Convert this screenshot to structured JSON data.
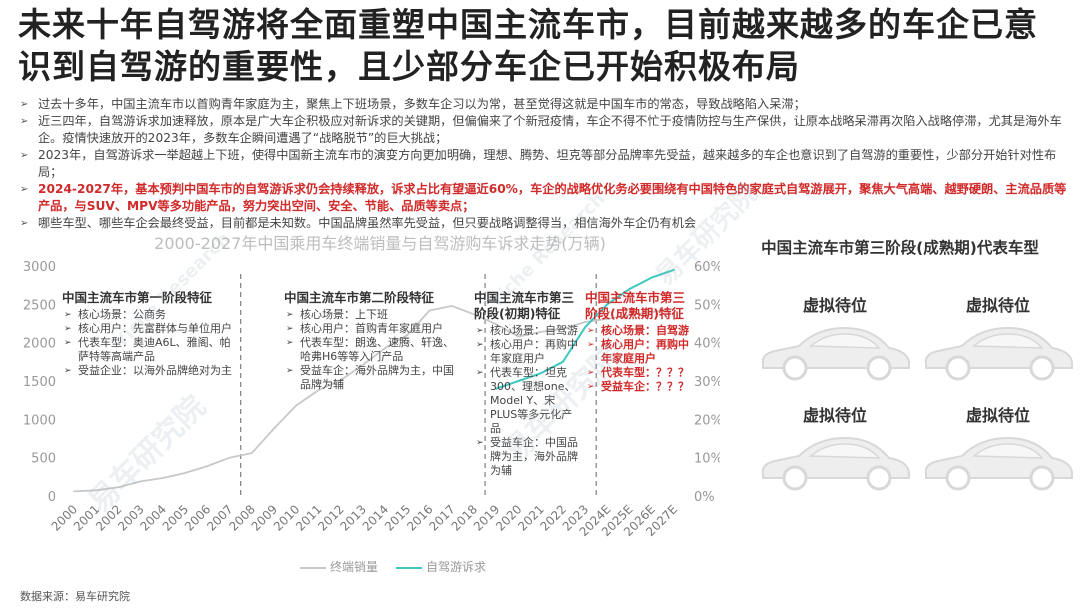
{
  "title": "未来十年自驾游将全面重塑中国主流车市，目前越来越多的车企已意识到自驾游的重要性，且少部分车企已开始积极布局",
  "bullets": [
    {
      "text": "过去十多年，中国主流车市以首购青年家庭为主，聚焦上下班场景，多数车企习以为常，甚至觉得这就是中国车市的常态，导致战略陷入呆滞；",
      "highlight": false
    },
    {
      "text": "近三四年，自驾游诉求加速释放，原本是广大车企积极应对新诉求的关键期，但偏偏来了个新冠疫情，车企不得不忙于疫情防控与生产保供，让原本战略呆滞再次陷入战略停滞，尤其是海外车企。疫情快速放开的2023年，多数车企瞬间遭遇了“战略脱节”的巨大挑战；",
      "highlight": false
    },
    {
      "text": "2023年，自驾游诉求一举超越上下班，使得中国新主流车市的演变方向更加明确，理想、腾势、坦克等部分品牌率先受益，越来越多的车企也意识到了自驾游的重要性，少部分开始针对性布局；",
      "highlight": false
    },
    {
      "text": "2024-2027年，基本预判中国车市的自驾游诉求仍会持续释放，诉求占比有望逼近60%，车企的战略优化务必要围绕有中国特色的家庭式自驾游展开，聚焦大气高端、越野硬朗、主流品质等产品，与SUV、MPV等多功能产品，努力突出空间、安全、节能、品质等卖点；",
      "highlight": true
    },
    {
      "text": "哪些车型、哪些车企会最终受益，目前都是未知数。中国品牌虽然率先受益，但只要战略调整得当，相信海外车企仍有机会",
      "highlight": false
    }
  ],
  "bullet_marker": "➢",
  "chart_data": {
    "type": "line",
    "title": "2000-2027年中国乘用车终端销量与自驾游购车诉求走势(万辆)",
    "x": [
      "2000",
      "2001",
      "2002",
      "2003",
      "2004",
      "2005",
      "2006",
      "2007",
      "2008",
      "2009",
      "2010",
      "2011",
      "2012",
      "2013",
      "2014",
      "2015",
      "2016",
      "2017",
      "2018",
      "2019",
      "2020",
      "2021",
      "2022",
      "2023",
      "2024E",
      "2025E",
      "2026E",
      "2027E"
    ],
    "y_left_ticks": [
      "0",
      "500",
      "1000",
      "1500",
      "2000",
      "2500",
      "3000"
    ],
    "y_right_ticks": [
      "0%",
      "10%",
      "20%",
      "30%",
      "40%",
      "50%",
      "60%"
    ],
    "ylim_left": [
      0,
      3000
    ],
    "ylim_right": [
      0,
      0.6
    ],
    "grid": false,
    "legend": "bottom",
    "series": [
      {
        "name": "终端销量",
        "axis": "left",
        "color": "#c8c8c8",
        "values": [
          60,
          75,
          115,
          190,
          235,
          300,
          390,
          500,
          560,
          880,
          1180,
          1380,
          1510,
          1710,
          1930,
          2100,
          2420,
          2480,
          2370,
          2240,
          2080,
          2140,
          2180,
          2270,
          2310,
          2360,
          2400,
          2440
        ]
      },
      {
        "name": "自驾游诉求",
        "axis": "right",
        "color": "#3fc8c0",
        "values": [
          null,
          null,
          null,
          null,
          null,
          null,
          null,
          null,
          null,
          null,
          null,
          null,
          null,
          null,
          null,
          null,
          null,
          null,
          null,
          0.28,
          0.3,
          0.32,
          0.35,
          0.44,
          0.5,
          0.54,
          0.57,
          0.59
        ]
      }
    ],
    "stage_boundaries_after": [
      "2007",
      "2018",
      "2023"
    ]
  },
  "stages": [
    {
      "heading": "中国主流车市第一阶段特征",
      "red": false,
      "items": [
        "核心场景：公商务",
        "核心用户：先富群体与单位用户",
        "代表车型：奥迪A6L、雅阁、帕萨特等高端产品",
        "受益企业：以海外品牌绝对为主"
      ]
    },
    {
      "heading": "中国主流车市第二阶段特征",
      "red": false,
      "items": [
        "核心场景：上下班",
        "核心用户：首购青年家庭用户",
        "代表车型：朗逸、速腾、轩逸、哈弗H6等等入门产品",
        "受益车企：海外品牌为主，中国品牌为辅"
      ]
    },
    {
      "heading": "中国主流车市第三阶段(初期)特征",
      "red": false,
      "items": [
        "核心场景：自驾游",
        "核心用户：再购中年家庭用户",
        "代表车型：坦克300、理想one、Model Y、宋PLUS等多元化产品",
        "受益车企：中国品牌为主，海外品牌为辅"
      ]
    },
    {
      "heading": "中国主流车市第三阶段(成熟期)特征",
      "red": true,
      "items": [
        "核心场景：自驾游",
        "核心用户：再购中年家庭用户",
        "代表车型：？？？",
        "受益车企：？？？"
      ]
    }
  ],
  "stage_marker": "➢",
  "right_panel": {
    "title": "中国主流车市第三阶段(成熟期)代表车型",
    "placeholders": [
      "虚拟待位",
      "虚拟待位",
      "虚拟待位",
      "虚拟待位"
    ]
  },
  "watermarks": [
    "易车研究院",
    "Yiche Research",
    "易车研究院",
    "Yiche Research",
    "易车研究院"
  ],
  "source": "数据来源：易车研究院"
}
